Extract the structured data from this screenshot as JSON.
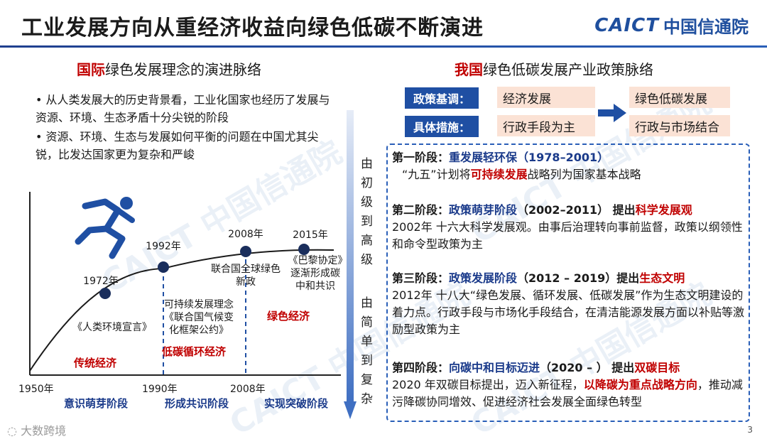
{
  "header": {
    "title": "工业发展方向从重经济收益向绿色低碳不断演进",
    "logo_en": "CAICT",
    "logo_cn": "中国信通院"
  },
  "left": {
    "heading_red": "国际",
    "heading_rest": "绿色发展理念的演进脉络",
    "bullets": [
      "•  从人类发展大的历史背景看，工业化国家也经历了发展与资源、环境、生态矛盾十分尖锐的阶段",
      "•  资源、环境、生态与发展如何平衡的问题在中国尤其尖锐，比发达国家更为复杂和严峻"
    ],
    "timeline": {
      "milestones": [
        {
          "year": "1972年",
          "label": "《人类环境宣言》"
        },
        {
          "year": "1992年",
          "label": "可持续发展理念《联合国气候变化框架公约》"
        },
        {
          "year": "2008年",
          "label": "联合国全球绿色新政"
        },
        {
          "year": "2015年",
          "label": "《巴黎协定》逐渐形成碳中和共识"
        }
      ],
      "eras": [
        "传统经济",
        "低碳循环经济",
        "绿色经济"
      ],
      "axis_years": [
        "1950年",
        "1990年",
        "2008年"
      ],
      "phases": [
        "意识萌芽阶段",
        "形成共识阶段",
        "实现突破阶段"
      ]
    }
  },
  "arrow": {
    "text_top": "由初级到高级",
    "text_bottom": "由简单到复杂"
  },
  "right": {
    "heading_red": "我国",
    "heading_rest": "绿色低碳发展产业政策脉络",
    "policy": {
      "label_1": "政策基调：",
      "from_1": "经济发展",
      "to_1": "绿色低碳发展",
      "label_2": "具体措施：",
      "from_2": "行政手段为主",
      "to_2": "行政与市场结合"
    },
    "stages": [
      {
        "prefix": "第一阶段：",
        "name": "重发展轻环保",
        "period": "（1978–2001）",
        "extra_label": "",
        "extra_red": "",
        "body_pre": "“九五”计划将",
        "body_red": "可持续发展",
        "body_post": "战略列为国家基本战略"
      },
      {
        "prefix": "第二阶段：",
        "name": "政策萌芽阶段",
        "period": "（2002–2011）",
        "extra_label": " 提出",
        "extra_red": "科学发展观",
        "body_pre": "2002年  十六大科学发展观。由事后治理转向事前监督，政策以纲领性和命令型政策为主",
        "body_red": "",
        "body_post": ""
      },
      {
        "prefix": "第三阶段：",
        "name": "政策发展阶段",
        "period": "（2012 – 2019）",
        "extra_label": "提出",
        "extra_red": "生态文明",
        "body_pre": "2012年  十八大“绿色发展、循环发展、低碳发展”作为生态文明建设的着力点。行政手段与市场化手段结合，在清洁能源发展方面以补贴等激励型政策为主",
        "body_red": "",
        "body_post": ""
      },
      {
        "prefix": "第四阶段：",
        "name": "向碳中和目标迈进",
        "period": "（2020 – ）",
        "extra_label": " 提出",
        "extra_red": "双碳目标",
        "body_pre": "2020 年双碳目标提出，迈入新征程，",
        "body_red": "以降碳为重点战略方向",
        "body_post": "，推动减污降碳协同增效、促进经济社会发展全面绿色转型"
      }
    ]
  },
  "footer": {
    "brand": "大数跨境",
    "page_number": "3"
  },
  "colors": {
    "accent_blue": "#1f4fa3",
    "accent_red": "#c00000",
    "cell_peach": "#fbe2d5",
    "dot_navy": "#1a2e5c"
  }
}
